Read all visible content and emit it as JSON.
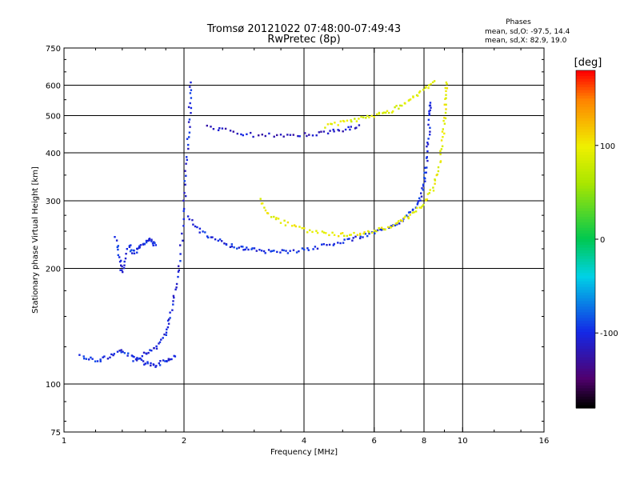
{
  "chart_data": {
    "type": "scatter",
    "title": "Tromsø 20121022 07:48:00-07:49:43",
    "subtitle": "RwPretec (8p)",
    "xlabel": "Frequency [MHz]",
    "ylabel": "Stationary phase Virtual Height [km]",
    "x_scale": "log",
    "y_scale": "log",
    "xlim": [
      1,
      16
    ],
    "ylim": [
      75,
      750
    ],
    "x_ticks": [
      1,
      2,
      4,
      6,
      8,
      10,
      16
    ],
    "y_ticks": [
      75,
      100,
      200,
      300,
      400,
      500,
      600,
      750
    ],
    "x_grid": [
      2,
      4,
      6,
      8,
      10
    ],
    "y_grid": [
      100,
      200,
      300,
      400,
      500,
      600
    ],
    "stats": {
      "title": "Phases",
      "line_o": "mean, sd,O: -97.5, 14.4",
      "line_x": "mean, sd,X:  82.9, 19.0"
    },
    "colorbar": {
      "label": "[deg]",
      "range": [
        -180,
        180
      ],
      "ticks": [
        100,
        0,
        -100
      ],
      "tick_labels": [
        "100",
        "0",
        "-100"
      ]
    },
    "series": [
      {
        "kind": "O-mode F2 trace",
        "phase_deg": -100,
        "points": [
          [
            2.05,
            270
          ],
          [
            2.2,
            250
          ],
          [
            2.4,
            238
          ],
          [
            2.6,
            230
          ],
          [
            2.8,
            226
          ],
          [
            3.0,
            223
          ],
          [
            3.3,
            221
          ],
          [
            3.6,
            221
          ],
          [
            4.0,
            224
          ],
          [
            4.5,
            229
          ],
          [
            5.0,
            235
          ],
          [
            5.5,
            241
          ],
          [
            6.0,
            248
          ],
          [
            6.5,
            256
          ],
          [
            7.0,
            266
          ],
          [
            7.5,
            282
          ],
          [
            7.8,
            300
          ],
          [
            8.0,
            330
          ],
          [
            8.1,
            370
          ],
          [
            8.2,
            430
          ],
          [
            8.25,
            500
          ],
          [
            8.3,
            540
          ]
        ]
      },
      {
        "kind": "X-mode F2 trace",
        "phase_deg": 95,
        "points": [
          [
            3.1,
            300
          ],
          [
            3.3,
            275
          ],
          [
            3.6,
            262
          ],
          [
            4.0,
            252
          ],
          [
            4.5,
            246
          ],
          [
            5.0,
            245
          ],
          [
            5.5,
            247
          ],
          [
            6.0,
            250
          ],
          [
            6.5,
            256
          ],
          [
            7.0,
            265
          ],
          [
            7.5,
            278
          ],
          [
            8.0,
            295
          ],
          [
            8.4,
            320
          ],
          [
            8.7,
            360
          ],
          [
            8.9,
            420
          ],
          [
            9.0,
            480
          ],
          [
            9.05,
            550
          ],
          [
            9.1,
            610
          ]
        ]
      },
      {
        "kind": "O-mode multiple echo",
        "phase_deg": -115,
        "points": [
          [
            2.3,
            470
          ],
          [
            2.6,
            455
          ],
          [
            3.0,
            445
          ],
          [
            3.5,
            443
          ],
          [
            4.0,
            445
          ],
          [
            4.5,
            452
          ],
          [
            5.0,
            460
          ],
          [
            5.5,
            472
          ]
        ]
      },
      {
        "kind": "X-mode multiple echo",
        "phase_deg": 90,
        "points": [
          [
            4.5,
            470
          ],
          [
            5.0,
            480
          ],
          [
            5.5,
            490
          ],
          [
            6.0,
            500
          ],
          [
            6.5,
            510
          ],
          [
            7.0,
            530
          ],
          [
            7.5,
            560
          ],
          [
            8.0,
            580
          ],
          [
            8.5,
            615
          ]
        ]
      },
      {
        "kind": "E/F1 cusp near 2 MHz",
        "phase_deg": -105,
        "points": [
          [
            1.5,
            115
          ],
          [
            1.6,
            120
          ],
          [
            1.7,
            125
          ],
          [
            1.8,
            135
          ],
          [
            1.85,
            150
          ],
          [
            1.9,
            175
          ],
          [
            1.95,
            210
          ],
          [
            2.0,
            280
          ],
          [
            2.02,
            350
          ],
          [
            2.05,
            430
          ],
          [
            2.07,
            520
          ],
          [
            2.08,
            610
          ]
        ]
      },
      {
        "kind": "Low-frequency trace",
        "phase_deg": -100,
        "points": [
          [
            1.1,
            118
          ],
          [
            1.2,
            115
          ],
          [
            1.3,
            118
          ],
          [
            1.4,
            122
          ],
          [
            1.5,
            117
          ],
          [
            1.6,
            113
          ],
          [
            1.7,
            112
          ],
          [
            1.8,
            115
          ],
          [
            1.9,
            118
          ]
        ]
      },
      {
        "kind": "Es layer echoes",
        "phase_deg": -100,
        "points": [
          [
            1.35,
            240
          ],
          [
            1.38,
            210
          ],
          [
            1.4,
            195
          ],
          [
            1.45,
            230
          ],
          [
            1.5,
            220
          ],
          [
            1.55,
            228
          ],
          [
            1.6,
            232
          ],
          [
            1.65,
            238
          ],
          [
            1.7,
            230
          ]
        ]
      }
    ]
  }
}
